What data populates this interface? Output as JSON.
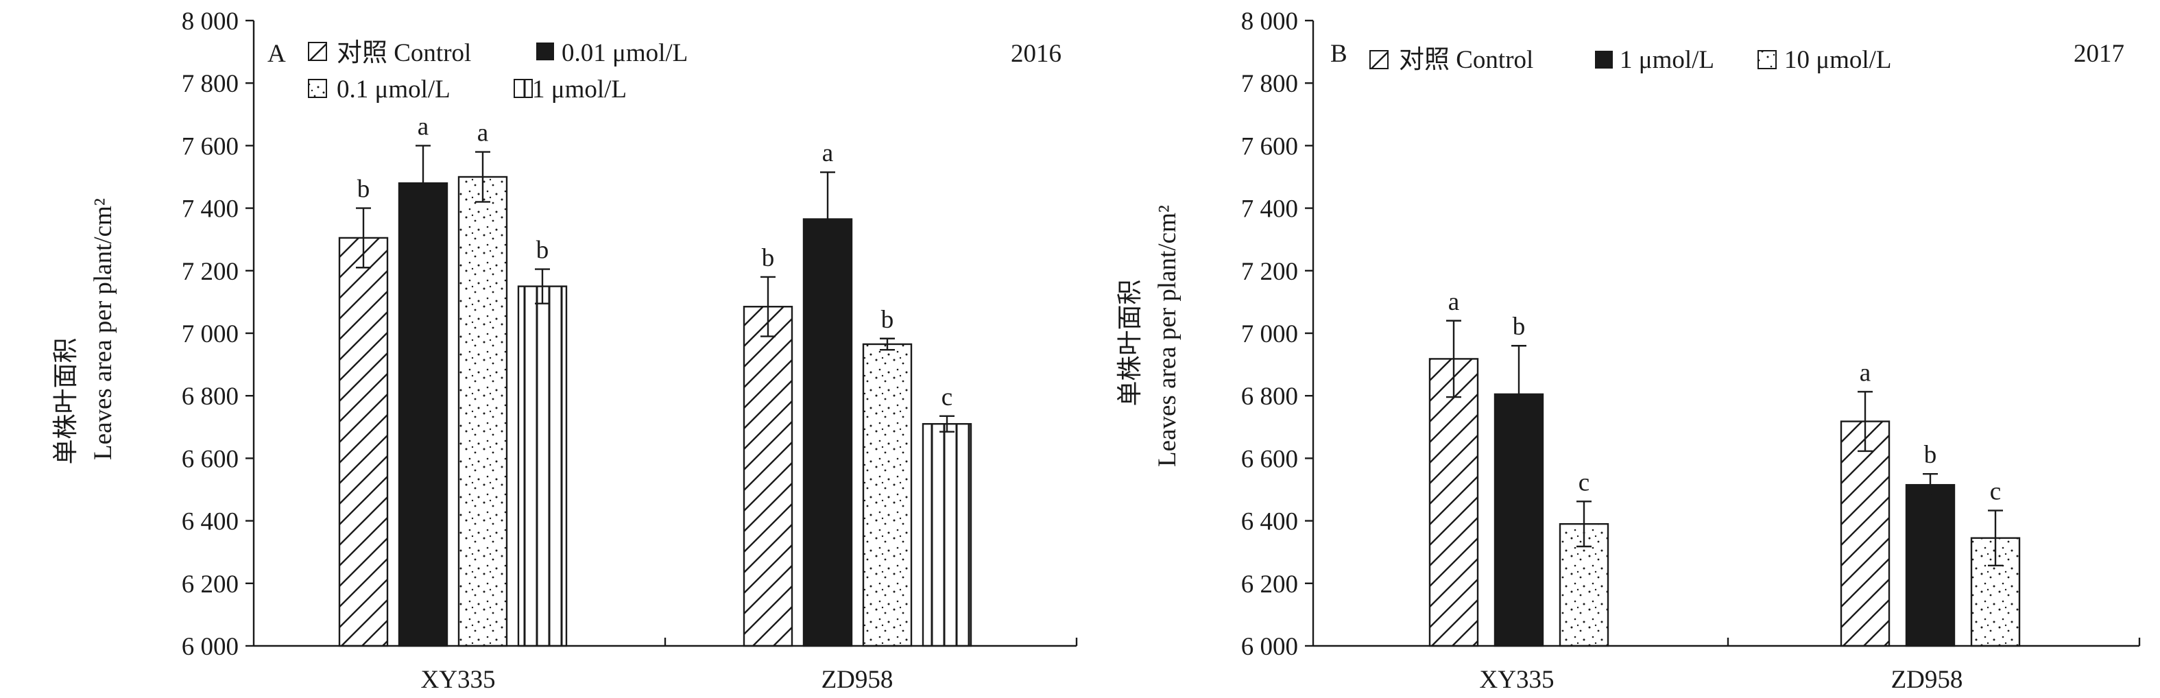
{
  "y_tick_labels": [
    "6 000",
    "6 200",
    "6 400",
    "6 600",
    "6 800",
    "7 000",
    "7 200",
    "7 400",
    "7 600",
    "7 800",
    "8 000"
  ],
  "ylabel_cn": "单株叶面积",
  "ylabel_en": "Leaves area per plant/cm²",
  "chart_data": [
    {
      "type": "bar",
      "panel": "A",
      "year": "2016",
      "categories": [
        "XY335",
        "ZD958"
      ],
      "ylim": [
        6000,
        8000
      ],
      "series": [
        {
          "name": "对照 Control",
          "values": [
            7305,
            7085
          ],
          "errors": [
            95,
            95
          ],
          "letters": [
            "b",
            "b"
          ],
          "pattern": "hatch"
        },
        {
          "name": "0.01 μmol/L",
          "values": [
            7480,
            7365
          ],
          "errors": [
            120,
            150
          ],
          "letters": [
            "a",
            "a"
          ],
          "pattern": "solid"
        },
        {
          "name": "0.1 μmol/L",
          "values": [
            7500,
            6965
          ],
          "errors": [
            80,
            18
          ],
          "letters": [
            "a",
            "b"
          ],
          "pattern": "dots"
        },
        {
          "name": "1 μmol/L",
          "values": [
            7150,
            6710
          ],
          "errors": [
            55,
            25
          ],
          "letters": [
            "b",
            "c"
          ],
          "pattern": "vlines"
        }
      ]
    },
    {
      "type": "bar",
      "panel": "B",
      "year": "2017",
      "categories": [
        "XY335",
        "ZD958"
      ],
      "ylim": [
        6000,
        8000
      ],
      "series": [
        {
          "name": "对照 Control",
          "values": [
            6918,
            6718
          ],
          "errors": [
            122,
            95
          ],
          "letters": [
            "a",
            "a"
          ],
          "pattern": "hatch"
        },
        {
          "name": "1 μmol/L",
          "values": [
            6805,
            6515
          ],
          "errors": [
            155,
            35
          ],
          "letters": [
            "b",
            "b"
          ],
          "pattern": "solid"
        },
        {
          "name": "10 μmol/L",
          "values": [
            6390,
            6345
          ],
          "errors": [
            72,
            88
          ],
          "letters": [
            "c",
            "c"
          ],
          "pattern": "dots"
        }
      ]
    }
  ]
}
